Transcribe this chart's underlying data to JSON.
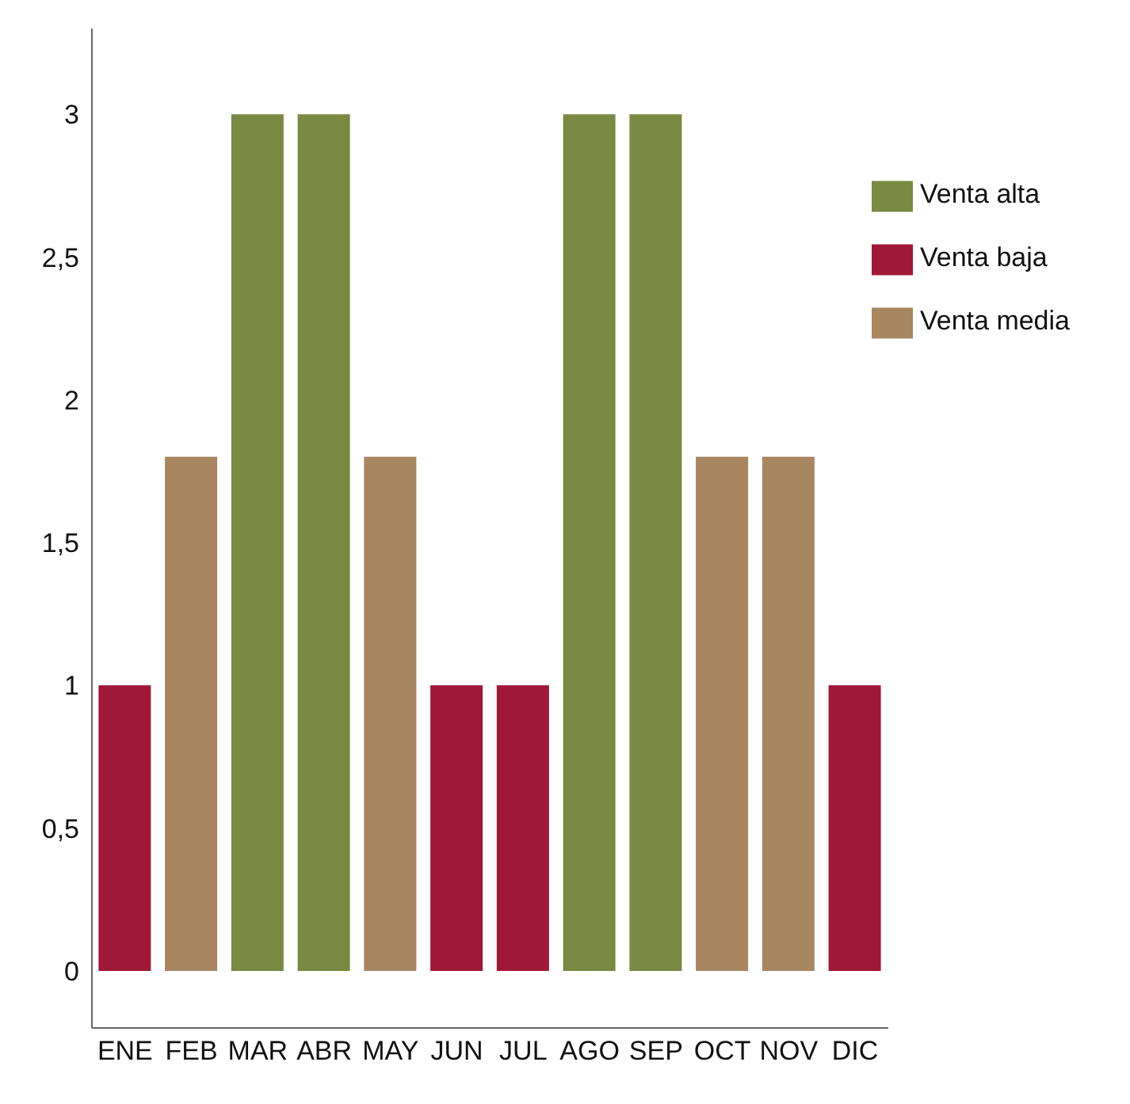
{
  "chart_data": {
    "type": "bar",
    "stacked": true,
    "categories": [
      "ENE",
      "FEB",
      "MAR",
      "ABR",
      "MAY",
      "JUN",
      "JUL",
      "AGO",
      "SEP",
      "OCT",
      "NOV",
      "DIC"
    ],
    "series": [
      {
        "name": "Venta baja",
        "color": "#a01838",
        "values": [
          1,
          null,
          null,
          null,
          null,
          1,
          1,
          null,
          null,
          null,
          null,
          1
        ]
      },
      {
        "name": "Venta media",
        "color": "#a88660",
        "values": [
          null,
          1.8,
          null,
          null,
          1.8,
          null,
          null,
          null,
          null,
          1.8,
          1.8,
          null
        ]
      },
      {
        "name": "Venta alta",
        "color": "#7a8a42",
        "values": [
          null,
          null,
          3,
          3,
          null,
          null,
          null,
          3,
          3,
          null,
          null,
          null
        ]
      }
    ],
    "ylim": [
      -0.2,
      3.3
    ],
    "yticks": [
      0,
      {
        "value": 0.5,
        "label": "0,5"
      },
      1,
      {
        "value": 1.5,
        "label": "1,5"
      },
      2,
      {
        "value": 2.5,
        "label": "2,5"
      },
      3
    ],
    "grid": false,
    "legend": "top right"
  }
}
